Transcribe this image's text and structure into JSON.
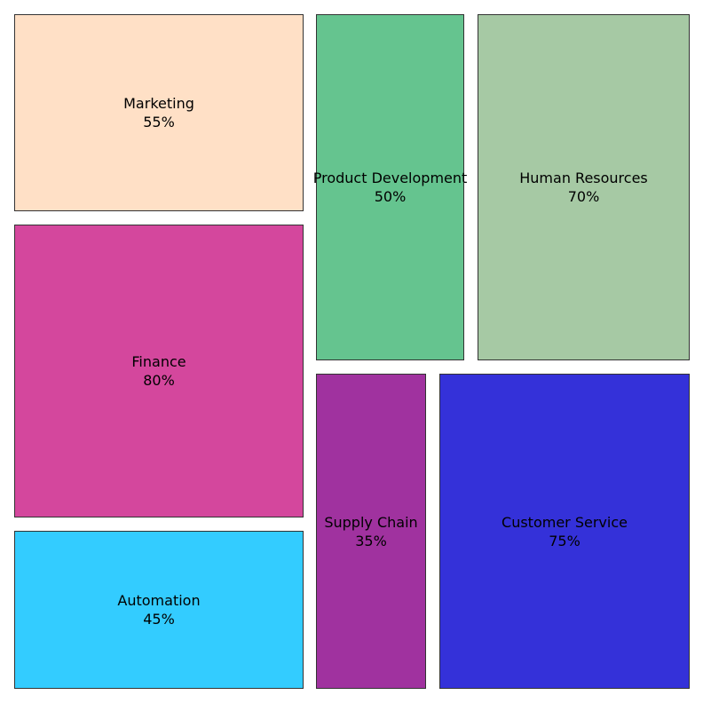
{
  "chart_data": {
    "type": "treemap",
    "title": "",
    "items": [
      {
        "label": "Marketing",
        "value": 55,
        "value_text": "55%",
        "color": "#FFE0C6"
      },
      {
        "label": "Finance",
        "value": 80,
        "value_text": "80%",
        "color": "#D4479D"
      },
      {
        "label": "Automation",
        "value": 45,
        "value_text": "45%",
        "color": "#33CCFF"
      },
      {
        "label": "Product Development",
        "value": 50,
        "value_text": "50%",
        "color": "#65C48F"
      },
      {
        "label": "Human Resources",
        "value": 70,
        "value_text": "70%",
        "color": "#A6C9A4"
      },
      {
        "label": "Supply Chain",
        "value": 35,
        "value_text": "35%",
        "color": "#A0329F"
      },
      {
        "label": "Customer Service",
        "value": 75,
        "value_text": "75%",
        "color": "#3431D9"
      }
    ]
  }
}
